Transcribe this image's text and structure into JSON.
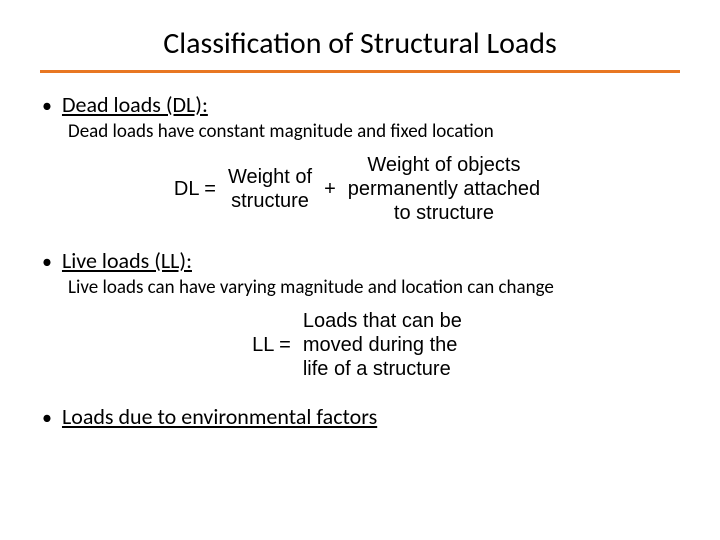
{
  "colors": {
    "accent": "#e87722",
    "text": "#000000",
    "background": "#ffffff"
  },
  "fonts": {
    "title_size": 30,
    "bullet_size": 22,
    "subtext_size": 19,
    "equation_size": 20
  },
  "title": "Classification of Structural Loads",
  "sections": {
    "dl": {
      "bullet_marker": "•",
      "heading": "Dead loads (DL):",
      "description": "Dead loads have constant magnitude and fixed location",
      "equation": {
        "label": "DL =",
        "term1_line1": "Weight of",
        "term1_line2": "structure",
        "plus": "+",
        "term2_line1": "Weight of objects",
        "term2_line2": "permanently attached",
        "term2_line3": "to structure"
      }
    },
    "ll": {
      "bullet_marker": "•",
      "heading": "Live loads (LL):",
      "description": "Live loads can have varying magnitude and location can change",
      "equation": {
        "label": "LL =",
        "term1_line1": "Loads that can be",
        "term1_line2": "moved during the",
        "term1_line3": "life of a structure"
      }
    },
    "env": {
      "bullet_marker": "•",
      "heading": "Loads due to environmental factors"
    }
  }
}
